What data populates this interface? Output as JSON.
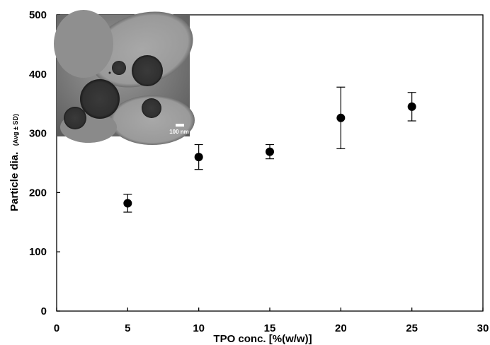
{
  "chart_data": {
    "type": "scatter",
    "xlabel": "TPO conc. [%(w/w)]",
    "ylabel": "Particle dia.",
    "ylabel_sub": "(Avg ± SD)",
    "xlim": [
      0,
      30
    ],
    "ylim": [
      0,
      500
    ],
    "x_ticks": [
      "0",
      "5",
      "10",
      "15",
      "20",
      "25",
      "30"
    ],
    "y_ticks": [
      "0",
      "100",
      "200",
      "300",
      "400",
      "500"
    ],
    "grid": false,
    "series": [
      {
        "x": [
          5,
          10,
          15,
          20,
          25
        ],
        "y": [
          182,
          260,
          269,
          326,
          345
        ],
        "error": [
          15,
          21,
          12,
          52,
          24
        ],
        "marker_color": "#000000"
      }
    ],
    "inset": {
      "kind": "micrograph",
      "scale_bar_label": "100 nm"
    }
  }
}
